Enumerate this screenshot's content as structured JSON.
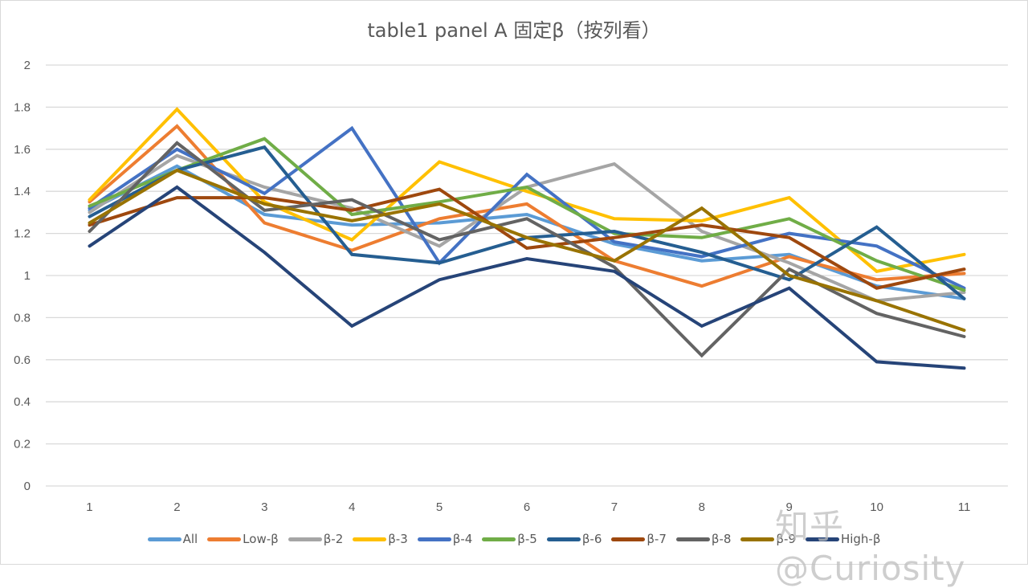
{
  "chart_data": {
    "type": "line",
    "title": "table1 panel A 固定β（按列看）",
    "xlabel": "",
    "ylabel": "",
    "x": [
      1,
      2,
      3,
      4,
      5,
      6,
      7,
      8,
      9,
      10,
      11
    ],
    "ylim": [
      0,
      2
    ],
    "yticks": [
      "0",
      "0.2",
      "0.4",
      "0.6",
      "0.8",
      "1",
      "1.2",
      "1.4",
      "1.6",
      "1.8",
      "2"
    ],
    "grid": true,
    "legend_position": "bottom",
    "series": [
      {
        "name": "All",
        "color": "#5B9BD5",
        "values": [
          1.31,
          1.52,
          1.29,
          1.24,
          1.25,
          1.29,
          1.15,
          1.07,
          1.1,
          0.95,
          0.89
        ]
      },
      {
        "name": "Low-β",
        "color": "#ED7D31",
        "values": [
          1.35,
          1.71,
          1.25,
          1.12,
          1.27,
          1.34,
          1.07,
          0.95,
          1.09,
          0.98,
          1.01
        ]
      },
      {
        "name": "β-2",
        "color": "#A5A5A5",
        "values": [
          1.3,
          1.57,
          1.42,
          1.32,
          1.14,
          1.42,
          1.53,
          1.21,
          1.06,
          0.88,
          0.92
        ]
      },
      {
        "name": "β-3",
        "color": "#FFC000",
        "values": [
          1.36,
          1.79,
          1.35,
          1.17,
          1.54,
          1.4,
          1.27,
          1.26,
          1.37,
          1.02,
          1.1
        ]
      },
      {
        "name": "β-4",
        "color": "#4472C4",
        "values": [
          1.32,
          1.6,
          1.39,
          1.7,
          1.06,
          1.48,
          1.16,
          1.09,
          1.2,
          1.14,
          0.94
        ]
      },
      {
        "name": "β-5",
        "color": "#70AD47",
        "values": [
          1.33,
          1.5,
          1.65,
          1.29,
          1.35,
          1.42,
          1.2,
          1.18,
          1.27,
          1.07,
          0.93
        ]
      },
      {
        "name": "β-6",
        "color": "#255E91",
        "values": [
          1.28,
          1.5,
          1.61,
          1.1,
          1.06,
          1.18,
          1.21,
          1.11,
          0.98,
          1.23,
          0.89
        ]
      },
      {
        "name": "β-7",
        "color": "#9E480E",
        "values": [
          1.24,
          1.37,
          1.37,
          1.31,
          1.41,
          1.13,
          1.18,
          1.24,
          1.18,
          0.94,
          1.03
        ]
      },
      {
        "name": "β-8",
        "color": "#636363",
        "values": [
          1.21,
          1.63,
          1.31,
          1.36,
          1.17,
          1.27,
          1.04,
          0.62,
          1.03,
          0.82,
          0.71
        ]
      },
      {
        "name": "β-9",
        "color": "#997300",
        "values": [
          1.25,
          1.5,
          1.34,
          1.26,
          1.34,
          1.18,
          1.07,
          1.32,
          1.0,
          0.88,
          0.74
        ]
      },
      {
        "name": "High-β",
        "color": "#264478",
        "values": [
          1.14,
          1.42,
          1.11,
          0.76,
          0.98,
          1.08,
          1.02,
          0.76,
          0.94,
          0.59,
          0.56
        ]
      }
    ]
  },
  "watermark": "知乎 @Curiosity"
}
